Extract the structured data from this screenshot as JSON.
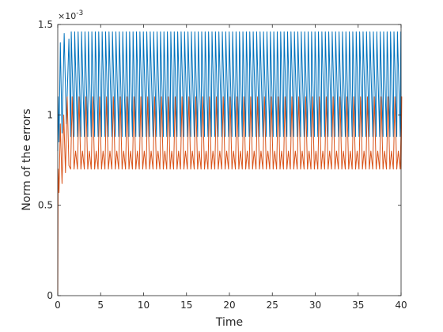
{
  "chart_data": {
    "type": "line",
    "xlabel": "Time",
    "ylabel": "Norm of the errors",
    "y_exponent": "×10",
    "y_exponent_power": "-3",
    "xlim": [
      0,
      40
    ],
    "ylim": [
      0,
      1.5
    ],
    "x_ticks": [
      0,
      5,
      10,
      15,
      20,
      25,
      30,
      35,
      40
    ],
    "y_ticks": [
      0,
      0.5,
      1,
      1.5
    ],
    "x_tick_labels": [
      "0",
      "5",
      "10",
      "15",
      "20",
      "25",
      "30",
      "35",
      "40"
    ],
    "y_tick_labels": [
      "0",
      "0.5",
      "1",
      "1.5"
    ],
    "grid": false,
    "series": [
      {
        "color": "#0072BD",
        "transient": {
          "x": [
            0,
            0.05,
            0.15,
            0.3,
            0.5,
            0.75,
            1.0,
            1.3
          ],
          "y": [
            0.8,
            1.1,
            0.85,
            1.4,
            0.9,
            1.45,
            0.95,
            1.42
          ]
        },
        "periodic": {
          "start": 1.5,
          "period": 0.4,
          "min": 0.88,
          "max": 1.46
        }
      },
      {
        "color": "#D95319",
        "transient": {
          "x": [
            0,
            0.05,
            0.15,
            0.3,
            0.5,
            0.7,
            0.9,
            1.1,
            1.3
          ],
          "y": [
            0,
            0.7,
            0.57,
            0.95,
            0.62,
            1.0,
            0.68,
            1.1,
            0.72
          ]
        },
        "periodic": {
          "start": 1.5,
          "period": 0.4,
          "high_peak": 1.1,
          "low_peak": 0.8,
          "trough": 0.7
        }
      }
    ]
  }
}
